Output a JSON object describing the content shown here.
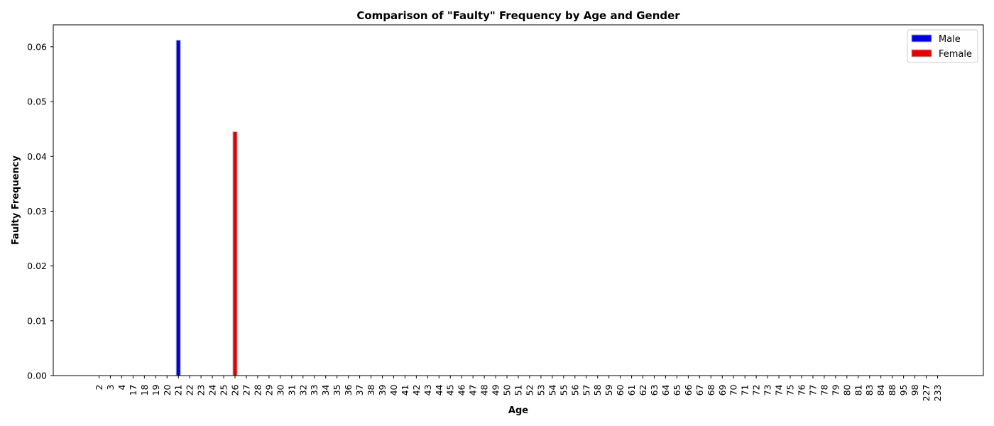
{
  "chart_data": {
    "type": "bar",
    "title": "Comparison of \"Faulty\" Frequency by Age and Gender",
    "xlabel": "Age",
    "ylabel": "Faulty Frequency",
    "ylim": [
      0,
      0.064
    ],
    "yticks": [
      "0.00",
      "0.01",
      "0.02",
      "0.03",
      "0.04",
      "0.05",
      "0.06"
    ],
    "grid": false,
    "legend_position": "top-right",
    "categories": [
      "2",
      "3",
      "4",
      "17",
      "18",
      "19",
      "20",
      "21",
      "22",
      "23",
      "24",
      "25",
      "26",
      "27",
      "28",
      "29",
      "30",
      "31",
      "32",
      "33",
      "34",
      "35",
      "36",
      "37",
      "38",
      "39",
      "40",
      "41",
      "42",
      "43",
      "44",
      "45",
      "46",
      "47",
      "48",
      "49",
      "50",
      "51",
      "52",
      "53",
      "54",
      "55",
      "56",
      "57",
      "58",
      "59",
      "60",
      "61",
      "62",
      "63",
      "64",
      "65",
      "66",
      "67",
      "68",
      "69",
      "70",
      "71",
      "72",
      "73",
      "74",
      "75",
      "76",
      "77",
      "78",
      "79",
      "80",
      "81",
      "83",
      "84",
      "88",
      "95",
      "98",
      "227",
      "233"
    ],
    "series": [
      {
        "name": "Male",
        "color": "#0000e6",
        "values": [
          0,
          0,
          0,
          0,
          0,
          0,
          0,
          0.0612,
          0,
          0,
          0,
          0,
          0,
          0,
          0,
          0,
          0,
          0,
          0,
          0,
          0,
          0,
          0,
          0,
          0,
          0,
          0,
          0,
          0,
          0,
          0,
          0,
          0,
          0,
          0,
          0,
          0,
          0,
          0,
          0,
          0,
          0,
          0,
          0,
          0,
          0,
          0,
          0,
          0,
          0,
          0,
          0,
          0,
          0,
          0,
          0,
          0,
          0,
          0,
          0,
          0,
          0,
          0,
          0,
          0,
          0,
          0,
          0,
          0,
          0,
          0,
          0,
          0,
          0,
          0
        ]
      },
      {
        "name": "Female",
        "color": "#e60000",
        "values": [
          0,
          0,
          0,
          0,
          0,
          0,
          0,
          0,
          0,
          0,
          0,
          0,
          0.0445,
          0,
          0,
          0,
          0,
          0,
          0,
          0,
          0,
          0,
          0,
          0,
          0,
          0,
          0,
          0,
          0,
          0,
          0,
          0,
          0,
          0,
          0,
          0,
          0,
          0,
          0,
          0,
          0,
          0,
          0,
          0,
          0,
          0,
          0,
          0,
          0,
          0,
          0,
          0,
          0,
          0,
          0,
          0,
          0,
          0,
          0,
          0,
          0,
          0,
          0,
          0,
          0,
          0,
          0,
          0,
          0,
          0,
          0,
          0,
          0,
          0,
          0
        ]
      }
    ]
  }
}
